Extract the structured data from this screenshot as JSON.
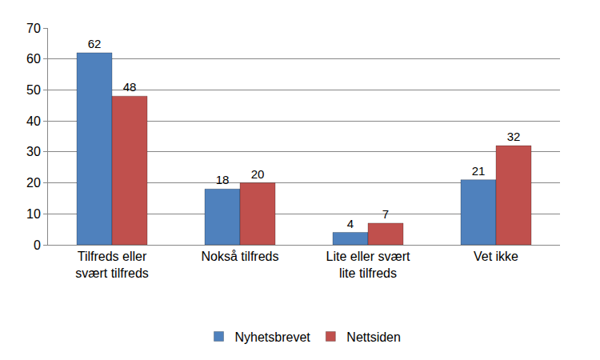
{
  "chart_data": {
    "type": "bar",
    "categories": [
      "Tilfreds eller\nsvært tilfreds",
      "Nokså tilfreds",
      "Lite eller svært\nlite tilfreds",
      "Vet ikke"
    ],
    "series": [
      {
        "name": "Nyhetsbrevet",
        "color": "#4f81bd",
        "values": [
          62,
          18,
          4,
          21
        ]
      },
      {
        "name": "Nettsiden",
        "color": "#c0504d",
        "values": [
          48,
          20,
          7,
          32
        ]
      }
    ],
    "ylim": [
      0,
      70
    ],
    "yticks": [
      0,
      10,
      20,
      30,
      40,
      50,
      60,
      70
    ],
    "grid": true,
    "legend": "bottom",
    "data_labels": true
  }
}
